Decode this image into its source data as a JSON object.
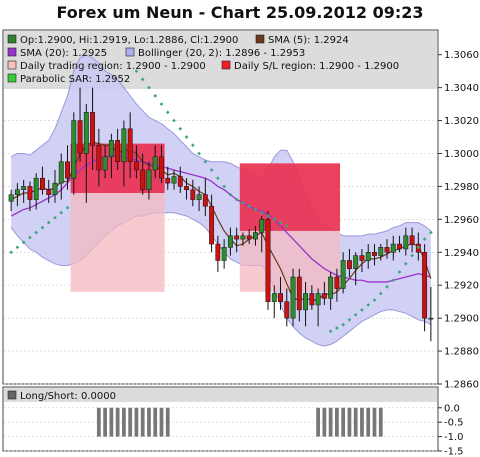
{
  "title": "Forex um Neun - Chart 25.09.2012 09:23",
  "legend": [
    {
      "text": "Op:1.2900, Hi:1.2919, Lo:1.2886, Cl:1.2900",
      "color": "#2f7f2f"
    },
    {
      "text": "SMA (5): 1.2924",
      "color": "#6b3b1f"
    },
    {
      "text": "SMA (20): 1.2925",
      "color": "#9933cc"
    },
    {
      "text": "Bollinger (20, 2): 1.2896 - 1.2953",
      "color": "#aab0f0"
    },
    {
      "text": "Daily trading region: 1.2900 - 1.2900",
      "color": "#f4c0c0"
    },
    {
      "text": "Daily S/L region: 1.2900 - 1.2900",
      "color": "#ee1c2c"
    },
    {
      "text": "Parabolic SAR: 1.2952",
      "color": "#33cc33"
    }
  ],
  "sub_legend": {
    "text": "Long/Short: 0.0000",
    "color": "#666666"
  },
  "colors": {
    "bull": "#2e8b2e",
    "bear": "#cc1111",
    "wick": "#111111",
    "sma5": "#6b3b1f",
    "sma20": "#9933cc",
    "bollinger_fill": "#c9c9f5",
    "bollinger_line": "#9999dd",
    "trade_region": "#f4b8c0",
    "sl_region": "#e8123a",
    "sar": "#3aa77a",
    "ls_bar": "#777777"
  },
  "chart_data": [
    {
      "type": "candlestick",
      "title": "Forex um Neun - Chart 25.09.2012 09:23",
      "ylim": [
        1.286,
        1.3075
      ],
      "y_ticks": [
        "1.3060",
        "1.3040",
        "1.3020",
        "1.3000",
        "1.2980",
        "1.2960",
        "1.2940",
        "1.2920",
        "1.2900",
        "1.2880",
        "1.2860"
      ],
      "grid": true,
      "legend_position": "top",
      "candles": [
        {
          "o": 1.2971,
          "h": 1.2978,
          "l": 1.2965,
          "c": 1.2975
        },
        {
          "o": 1.2975,
          "h": 1.2982,
          "l": 1.2968,
          "c": 1.2978
        },
        {
          "o": 1.2978,
          "h": 1.2984,
          "l": 1.297,
          "c": 1.298
        },
        {
          "o": 1.298,
          "h": 1.2983,
          "l": 1.2965,
          "c": 1.2972
        },
        {
          "o": 1.2972,
          "h": 1.2988,
          "l": 1.2966,
          "c": 1.2985
        },
        {
          "o": 1.2985,
          "h": 1.2992,
          "l": 1.2975,
          "c": 1.2978
        },
        {
          "o": 1.2978,
          "h": 1.2984,
          "l": 1.297,
          "c": 1.2975
        },
        {
          "o": 1.2975,
          "h": 1.299,
          "l": 1.297,
          "c": 1.2982
        },
        {
          "o": 1.2982,
          "h": 1.3,
          "l": 1.2972,
          "c": 1.2995
        },
        {
          "o": 1.2995,
          "h": 1.3005,
          "l": 1.2978,
          "c": 1.2985
        },
        {
          "o": 1.2985,
          "h": 1.3025,
          "l": 1.2975,
          "c": 1.302
        },
        {
          "o": 1.302,
          "h": 1.304,
          "l": 1.2995,
          "c": 1.3
        },
        {
          "o": 1.3,
          "h": 1.303,
          "l": 1.297,
          "c": 1.3025
        },
        {
          "o": 1.3025,
          "h": 1.304,
          "l": 1.299,
          "c": 1.3005
        },
        {
          "o": 1.3005,
          "h": 1.3015,
          "l": 1.298,
          "c": 1.299
        },
        {
          "o": 1.299,
          "h": 1.3005,
          "l": 1.2985,
          "c": 1.2998
        },
        {
          "o": 1.2998,
          "h": 1.3012,
          "l": 1.2985,
          "c": 1.3008
        },
        {
          "o": 1.3008,
          "h": 1.3015,
          "l": 1.299,
          "c": 1.2995
        },
        {
          "o": 1.2995,
          "h": 1.302,
          "l": 1.298,
          "c": 1.3015
        },
        {
          "o": 1.3015,
          "h": 1.3025,
          "l": 1.2985,
          "c": 1.2995
        },
        {
          "o": 1.2995,
          "h": 1.3005,
          "l": 1.2985,
          "c": 1.299
        },
        {
          "o": 1.299,
          "h": 1.3,
          "l": 1.2975,
          "c": 1.2978
        },
        {
          "o": 1.2978,
          "h": 1.2995,
          "l": 1.2972,
          "c": 1.299
        },
        {
          "o": 1.299,
          "h": 1.3005,
          "l": 1.2985,
          "c": 1.2998
        },
        {
          "o": 1.2998,
          "h": 1.3005,
          "l": 1.2982,
          "c": 1.2985
        },
        {
          "o": 1.2985,
          "h": 1.2992,
          "l": 1.2978,
          "c": 1.2982
        },
        {
          "o": 1.2982,
          "h": 1.299,
          "l": 1.2978,
          "c": 1.2986
        },
        {
          "o": 1.2986,
          "h": 1.2992,
          "l": 1.2976,
          "c": 1.298
        },
        {
          "o": 1.298,
          "h": 1.2985,
          "l": 1.2972,
          "c": 1.2978
        },
        {
          "o": 1.2978,
          "h": 1.2984,
          "l": 1.2968,
          "c": 1.2972
        },
        {
          "o": 1.2972,
          "h": 1.298,
          "l": 1.2965,
          "c": 1.2975
        },
        {
          "o": 1.2975,
          "h": 1.2985,
          "l": 1.2962,
          "c": 1.2968
        },
        {
          "o": 1.2968,
          "h": 1.2975,
          "l": 1.294,
          "c": 1.2945
        },
        {
          "o": 1.2945,
          "h": 1.295,
          "l": 1.2928,
          "c": 1.2935
        },
        {
          "o": 1.2935,
          "h": 1.2948,
          "l": 1.293,
          "c": 1.2943
        },
        {
          "o": 1.2943,
          "h": 1.2955,
          "l": 1.2938,
          "c": 1.295
        },
        {
          "o": 1.295,
          "h": 1.2955,
          "l": 1.294,
          "c": 1.2948
        },
        {
          "o": 1.2948,
          "h": 1.2952,
          "l": 1.2944,
          "c": 1.295
        },
        {
          "o": 1.295,
          "h": 1.2954,
          "l": 1.2945,
          "c": 1.2948
        },
        {
          "o": 1.2948,
          "h": 1.2956,
          "l": 1.2944,
          "c": 1.2952
        },
        {
          "o": 1.2952,
          "h": 1.2962,
          "l": 1.294,
          "c": 1.296
        },
        {
          "o": 1.296,
          "h": 1.2965,
          "l": 1.2905,
          "c": 1.291
        },
        {
          "o": 1.291,
          "h": 1.292,
          "l": 1.29,
          "c": 1.2915
        },
        {
          "o": 1.2915,
          "h": 1.2925,
          "l": 1.2905,
          "c": 1.291
        },
        {
          "o": 1.291,
          "h": 1.2918,
          "l": 1.2895,
          "c": 1.29
        },
        {
          "o": 1.29,
          "h": 1.293,
          "l": 1.2895,
          "c": 1.2925
        },
        {
          "o": 1.2925,
          "h": 1.293,
          "l": 1.2898,
          "c": 1.2905
        },
        {
          "o": 1.2905,
          "h": 1.2922,
          "l": 1.2895,
          "c": 1.2915
        },
        {
          "o": 1.2915,
          "h": 1.292,
          "l": 1.2905,
          "c": 1.2908
        },
        {
          "o": 1.2908,
          "h": 1.2918,
          "l": 1.2895,
          "c": 1.2915
        },
        {
          "o": 1.2915,
          "h": 1.2922,
          "l": 1.2908,
          "c": 1.2912
        },
        {
          "o": 1.2912,
          "h": 1.2928,
          "l": 1.2905,
          "c": 1.2925
        },
        {
          "o": 1.2925,
          "h": 1.293,
          "l": 1.291,
          "c": 1.2918
        },
        {
          "o": 1.2918,
          "h": 1.294,
          "l": 1.2915,
          "c": 1.2935
        },
        {
          "o": 1.2935,
          "h": 1.2942,
          "l": 1.2925,
          "c": 1.293
        },
        {
          "o": 1.293,
          "h": 1.294,
          "l": 1.292,
          "c": 1.2938
        },
        {
          "o": 1.2938,
          "h": 1.2942,
          "l": 1.2928,
          "c": 1.2935
        },
        {
          "o": 1.2935,
          "h": 1.2945,
          "l": 1.293,
          "c": 1.294
        },
        {
          "o": 1.294,
          "h": 1.2945,
          "l": 1.2932,
          "c": 1.2938
        },
        {
          "o": 1.2938,
          "h": 1.2945,
          "l": 1.2935,
          "c": 1.2943
        },
        {
          "o": 1.2943,
          "h": 1.2948,
          "l": 1.2936,
          "c": 1.294
        },
        {
          "o": 1.294,
          "h": 1.295,
          "l": 1.2935,
          "c": 1.2945
        },
        {
          "o": 1.2945,
          "h": 1.295,
          "l": 1.294,
          "c": 1.2942
        },
        {
          "o": 1.2942,
          "h": 1.2955,
          "l": 1.2938,
          "c": 1.295
        },
        {
          "o": 1.295,
          "h": 1.2955,
          "l": 1.294,
          "c": 1.2945
        },
        {
          "o": 1.2945,
          "h": 1.2952,
          "l": 1.2935,
          "c": 1.294
        },
        {
          "o": 1.294,
          "h": 1.2945,
          "l": 1.2892,
          "c": 1.29
        },
        {
          "o": 1.29,
          "h": 1.2919,
          "l": 1.2886,
          "c": 1.29
        }
      ],
      "bollinger_upper": [
        1.2998,
        1.3,
        1.3,
        1.2999,
        1.3002,
        1.3005,
        1.3008,
        1.3015,
        1.3025,
        1.3035,
        1.305,
        1.3058,
        1.306,
        1.3058,
        1.3055,
        1.305,
        1.3048,
        1.3045,
        1.304,
        1.3035,
        1.303,
        1.3026,
        1.3022,
        1.302,
        1.3018,
        1.3015,
        1.3012,
        1.3008,
        1.3004,
        1.3,
        1.2998,
        1.2996,
        1.2995,
        1.2995,
        1.2995,
        1.2994,
        1.2992,
        1.299,
        1.2988,
        1.2986,
        1.2985,
        1.299,
        1.2998,
        1.3002,
        1.3002,
        1.2995,
        1.2985,
        1.2975,
        1.2966,
        1.296,
        1.2956,
        1.2954,
        1.2952,
        1.295,
        1.295,
        1.295,
        1.295,
        1.2951,
        1.2951,
        1.2952,
        1.2953,
        1.2955,
        1.2956,
        1.2958,
        1.2958,
        1.2958,
        1.2956,
        1.2953
      ],
      "bollinger_lower": [
        1.2955,
        1.295,
        1.2946,
        1.2942,
        1.294,
        1.2937,
        1.2935,
        1.2933,
        1.2932,
        1.2932,
        1.2933,
        1.2935,
        1.2938,
        1.2942,
        1.2946,
        1.295,
        1.2953,
        1.2956,
        1.2958,
        1.296,
        1.2962,
        1.2962,
        1.2963,
        1.2964,
        1.2964,
        1.2964,
        1.2964,
        1.2963,
        1.2962,
        1.296,
        1.2958,
        1.2955,
        1.295,
        1.2945,
        1.294,
        1.2936,
        1.2934,
        1.2932,
        1.2932,
        1.2932,
        1.2932,
        1.2928,
        1.2918,
        1.2908,
        1.29,
        1.2895,
        1.2891,
        1.2888,
        1.2886,
        1.2884,
        1.2883,
        1.2884,
        1.2886,
        1.2889,
        1.2892,
        1.2895,
        1.2898,
        1.29,
        1.2902,
        1.2904,
        1.2905,
        1.2905,
        1.2904,
        1.2903,
        1.2901,
        1.2899,
        1.2898,
        1.2896
      ],
      "sma20": [
        1.2962,
        1.2964,
        1.2966,
        1.2967,
        1.2969,
        1.2971,
        1.2973,
        1.2975,
        1.2978,
        1.2982,
        1.2987,
        1.299,
        1.2993,
        1.2995,
        1.2997,
        1.2998,
        1.2999,
        1.2999,
        1.2998,
        1.2997,
        1.2996,
        1.2995,
        1.2994,
        1.2993,
        1.2992,
        1.2991,
        1.299,
        1.2989,
        1.2988,
        1.2987,
        1.2986,
        1.2985,
        1.2983,
        1.298,
        1.2978,
        1.2975,
        1.2972,
        1.297,
        1.2968,
        1.2966,
        1.2965,
        1.2963,
        1.296,
        1.2956,
        1.2952,
        1.2948,
        1.2944,
        1.294,
        1.2936,
        1.2933,
        1.293,
        1.2928,
        1.2926,
        1.2925,
        1.2924,
        1.2923,
        1.2923,
        1.2922,
        1.2922,
        1.2922,
        1.2922,
        1.2923,
        1.2924,
        1.2925,
        1.2926,
        1.2927,
        1.2926,
        1.2925
      ],
      "sma5": [
        1.2972,
        1.2974,
        1.2976,
        1.2976,
        1.2978,
        1.2979,
        1.2978,
        1.2979,
        1.2983,
        1.2983,
        1.2991,
        1.3,
        1.3005,
        1.3007,
        1.3006,
        1.3005,
        1.3005,
        1.3,
        1.3002,
        1.3002,
        1.3,
        1.2995,
        1.2993,
        1.2992,
        1.299,
        1.2987,
        1.2988,
        1.2986,
        1.2982,
        1.298,
        1.2977,
        1.2975,
        1.2968,
        1.296,
        1.2953,
        1.2948,
        1.2944,
        1.2945,
        1.2948,
        1.295,
        1.2952,
        1.2944,
        1.2937,
        1.293,
        1.2921,
        1.2912,
        1.2911,
        1.2912,
        1.2911,
        1.2911,
        1.2915,
        1.2914,
        1.2916,
        1.292,
        1.2924,
        1.2929,
        1.2933,
        1.2936,
        1.2936,
        1.2937,
        1.2939,
        1.2941,
        1.2942,
        1.2944,
        1.2945,
        1.2944,
        1.2935,
        1.2924
      ],
      "sar": [
        1.294,
        1.2943,
        1.2946,
        1.2949,
        1.2952,
        1.2955,
        1.2958,
        1.2961,
        1.2964,
        1.2967,
        null,
        null,
        null,
        null,
        null,
        null,
        null,
        null,
        null,
        null,
        1.305,
        1.3045,
        1.304,
        1.3035,
        1.303,
        1.3025,
        1.302,
        1.3015,
        1.301,
        1.3005,
        1.3,
        1.2995,
        1.299,
        1.2985,
        1.298,
        1.2975,
        1.2972,
        1.297,
        1.2968,
        1.2966,
        1.2964,
        1.2962,
        1.296,
        1.2958,
        1.2956,
        null,
        null,
        null,
        null,
        null,
        null,
        1.2892,
        1.2894,
        1.2896,
        1.2899,
        1.2902,
        1.2905,
        1.2908,
        1.2911,
        1.2915,
        1.2919,
        1.2923,
        1.2928,
        1.2933,
        1.2938,
        1.2943,
        1.2948,
        1.2952
      ],
      "trading_regions": [
        {
          "from": 10,
          "to": 24,
          "low": 1.2916,
          "high": 1.3006
        },
        {
          "from": 37,
          "to": 52,
          "low": 1.2916,
          "high": 1.2994
        }
      ],
      "sl_regions": [
        {
          "from": 10,
          "to": 24,
          "low": 1.2976,
          "high": 1.3006
        },
        {
          "from": 37,
          "to": 52,
          "low": 1.2953,
          "high": 1.2994
        }
      ]
    },
    {
      "type": "bar",
      "title": "Long/Short",
      "ylim": [
        -1.5,
        0.2
      ],
      "y_ticks": [
        "0.0",
        "-0.5",
        "-1.0",
        "-1.5"
      ],
      "values_by_candle": [
        0,
        0,
        0,
        0,
        0,
        0,
        0,
        0,
        0,
        0,
        0,
        0,
        0,
        0,
        -1,
        -1,
        -1,
        -1,
        -1,
        -1,
        -1,
        -1,
        -1,
        -1,
        -1,
        -1,
        0,
        0,
        0,
        0,
        0,
        0,
        0,
        0,
        0,
        0,
        0,
        0,
        0,
        0,
        0,
        0,
        0,
        0,
        0,
        0,
        0,
        0,
        0,
        -1,
        -1,
        -1,
        -1,
        -1,
        -1,
        -1,
        -1,
        -1,
        -1,
        -1,
        0,
        0,
        0,
        0,
        0,
        0,
        0,
        0
      ]
    }
  ]
}
